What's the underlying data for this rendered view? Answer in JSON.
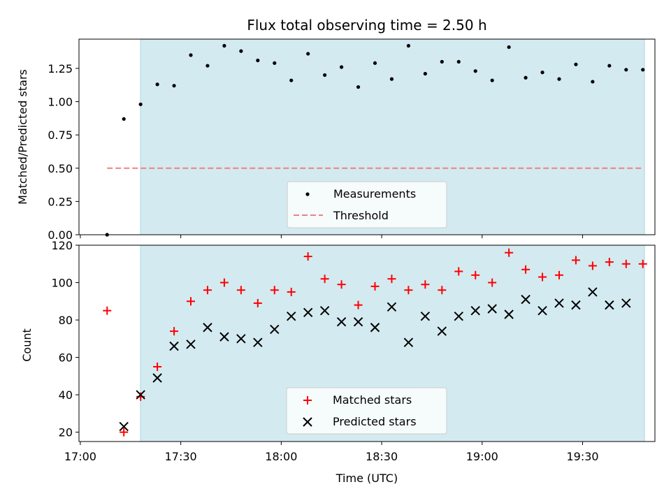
{
  "chart_data": [
    {
      "type": "scatter",
      "title": "Flux total observing time = 2.50 h",
      "xlabel": "",
      "ylabel": "Matched/Predicted stars",
      "ylim": [
        0,
        1.47
      ],
      "yticks": [
        "0.00",
        "0.25",
        "0.50",
        "0.75",
        "1.00",
        "1.25"
      ],
      "shaded_span_minutes": [
        17.95,
        168.5
      ],
      "series": [
        {
          "name": "Measurements",
          "marker": "dot",
          "color": "#000000",
          "x_minutes": [
            8,
            13,
            18,
            23,
            28,
            33,
            38,
            43,
            48,
            53,
            58,
            63,
            68,
            73,
            78,
            83,
            88,
            93,
            98,
            103,
            108,
            113,
            118,
            123,
            128,
            133,
            138,
            143,
            148,
            153,
            158,
            163,
            168
          ],
          "values": [
            0.0,
            0.87,
            0.98,
            1.13,
            1.12,
            1.35,
            1.27,
            1.42,
            1.38,
            1.31,
            1.29,
            1.16,
            1.36,
            1.2,
            1.26,
            1.11,
            1.29,
            1.17,
            1.42,
            1.21,
            1.3,
            1.3,
            1.23,
            1.16,
            1.41,
            1.18,
            1.22,
            1.17,
            1.28,
            1.15,
            1.27,
            1.24,
            1.24
          ]
        },
        {
          "name": "Threshold",
          "marker": "dashed-line",
          "color": "#f08080",
          "x_minutes": [
            8,
            168
          ],
          "values": [
            0.5,
            0.5
          ]
        }
      ],
      "legend": [
        "Measurements",
        "Threshold"
      ],
      "legend_position": "lower-center"
    },
    {
      "type": "scatter",
      "title": "",
      "xlabel": "Time (UTC)",
      "ylabel": "Count",
      "ylim": [
        15,
        120
      ],
      "yticks": [
        "20",
        "40",
        "60",
        "80",
        "100",
        "120"
      ],
      "shaded_span_minutes": [
        17.95,
        168.5
      ],
      "series": [
        {
          "name": "Matched stars",
          "marker": "plus",
          "color": "#ff0000",
          "x_minutes": [
            8,
            13,
            18,
            23,
            28,
            33,
            38,
            43,
            48,
            53,
            58,
            63,
            68,
            73,
            78,
            83,
            88,
            93,
            98,
            103,
            108,
            113,
            118,
            123,
            128,
            133,
            138,
            143,
            148,
            153,
            158,
            163,
            168
          ],
          "values": [
            85,
            20,
            39,
            55,
            74,
            90,
            96,
            100,
            96,
            89,
            96,
            95,
            114,
            102,
            99,
            88,
            98,
            102,
            96,
            99,
            96,
            106,
            104,
            100,
            116,
            107,
            103,
            104,
            112,
            109,
            111,
            110,
            110
          ]
        },
        {
          "name": "Predicted stars",
          "marker": "x",
          "color": "#000000",
          "x_minutes": [
            13,
            18,
            23,
            28,
            33,
            38,
            43,
            48,
            53,
            58,
            63,
            68,
            73,
            78,
            83,
            88,
            93,
            98,
            103,
            108,
            113,
            118,
            123,
            128,
            133,
            138,
            143,
            148,
            153,
            158,
            163
          ],
          "values": [
            23,
            40,
            49,
            66,
            67,
            76,
            71,
            70,
            68,
            75,
            82,
            84,
            85,
            79,
            79,
            76,
            87,
            68,
            82,
            74,
            82,
            85,
            86,
            83,
            91,
            85,
            89,
            88,
            95,
            88,
            89
          ]
        }
      ],
      "legend": [
        "Matched stars",
        "Predicted stars"
      ],
      "legend_position": "lower-center"
    }
  ],
  "x_axis": {
    "range_minutes_after_1700": [
      -0.4,
      171.6
    ],
    "ticks": [
      {
        "minutes": 0,
        "label": "17:00"
      },
      {
        "minutes": 30,
        "label": "17:30"
      },
      {
        "minutes": 60,
        "label": "18:00"
      },
      {
        "minutes": 90,
        "label": "18:30"
      },
      {
        "minutes": 120,
        "label": "19:00"
      },
      {
        "minutes": 150,
        "label": "19:30"
      }
    ]
  },
  "colors": {
    "shade": "#d3eaf0",
    "shade_edge": "#b0d8e2",
    "threshold": "#f08080",
    "matched": "#ff0000",
    "predicted": "#000000"
  }
}
